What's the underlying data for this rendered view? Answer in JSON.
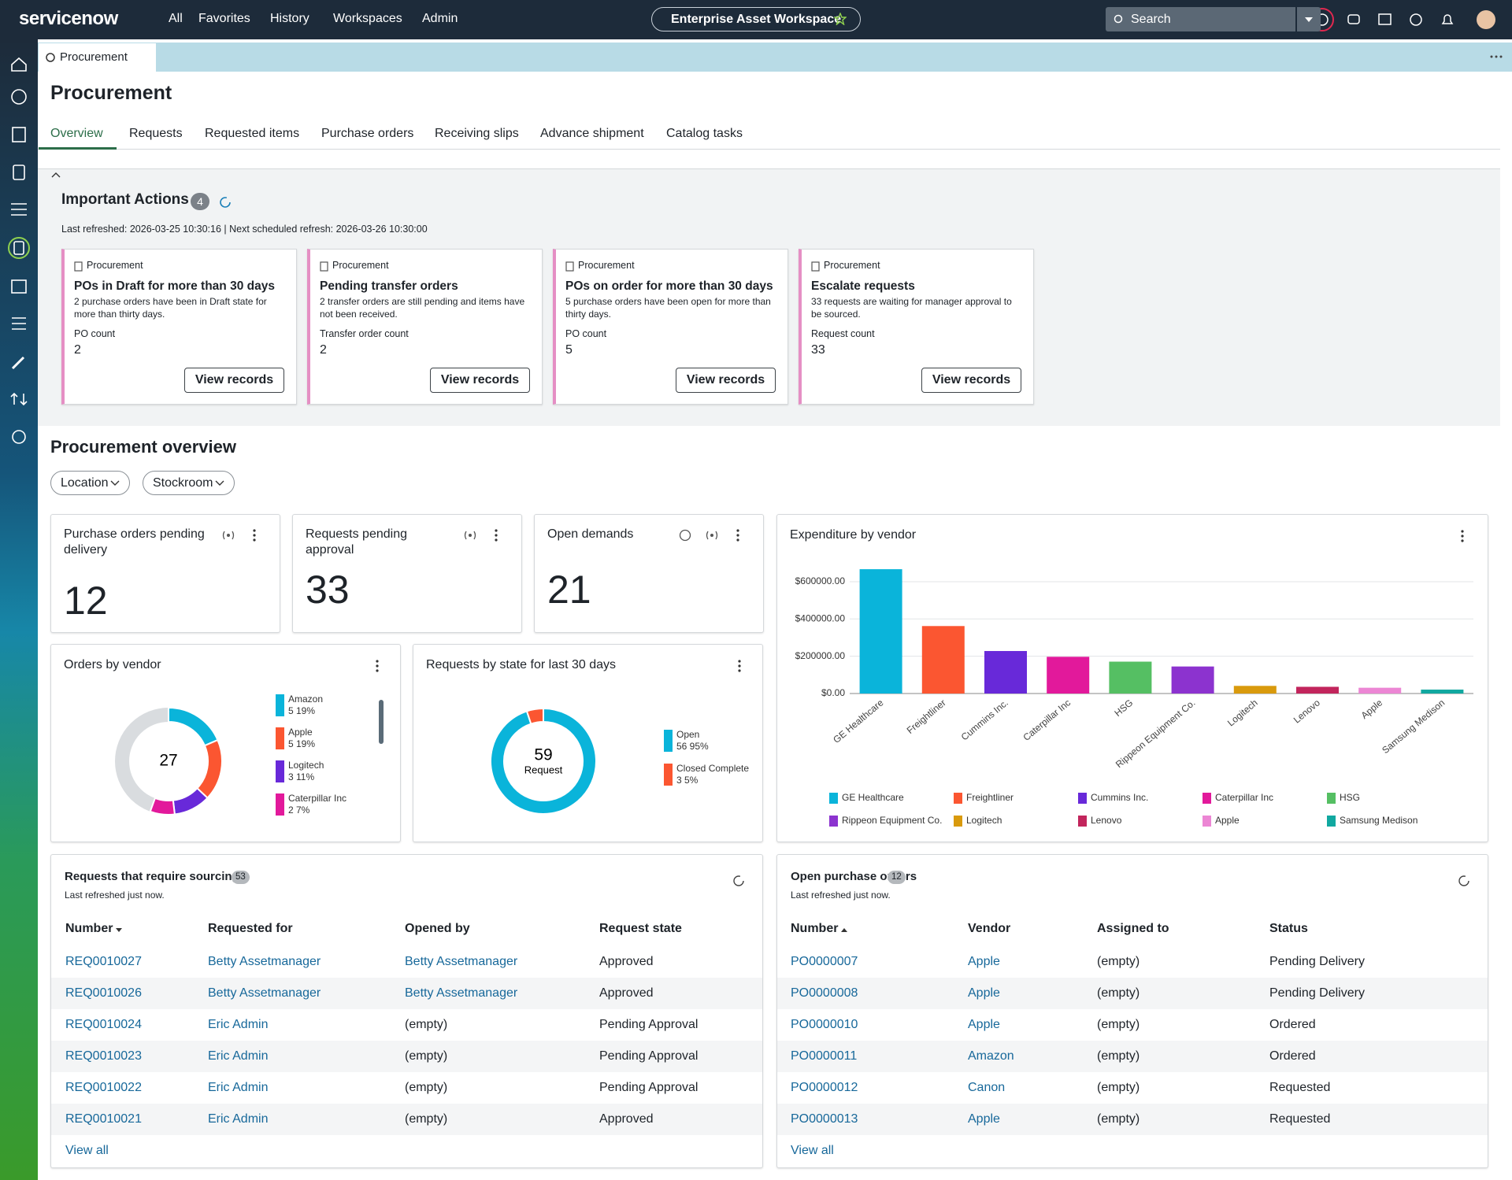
{
  "nav": {
    "brand": "servicenow",
    "menu": [
      "All",
      "Favorites",
      "History",
      "Workspaces",
      "Admin"
    ],
    "workspace": "Enterprise Asset Workspace",
    "search": "Search"
  },
  "tab": "Procurement",
  "page_title": "Procurement",
  "tabs": [
    "Overview",
    "Requests",
    "Requested items",
    "Purchase orders",
    "Receiving slips",
    "Advance shipment",
    "Catalog tasks"
  ],
  "actions": {
    "title": "Important Actions",
    "count": 4,
    "refresh": "Last refreshed: 2026-03-25 10:30:16 | Next scheduled refresh: 2026-03-26 10:30:00",
    "cards": [
      {
        "source": "Procurement",
        "title": "POs in Draft for more than 30 days",
        "description": "2 purchase orders have been in Draft state for more than thirty days.",
        "metric_label": "PO count",
        "metric": 2,
        "button": "View records"
      },
      {
        "source": "Procurement",
        "title": "Pending transfer orders",
        "description": "2 transfer orders are still pending and items have not been received.",
        "metric_label": "Transfer order count",
        "metric": 2,
        "button": "View records"
      },
      {
        "source": "Procurement",
        "title": "POs on order for more than 30 days",
        "description": "5 purchase orders have been open for more than thirty days.",
        "metric_label": "PO count",
        "metric": 5,
        "button": "View records"
      },
      {
        "source": "Procurement",
        "title": "Escalate requests",
        "description": "33 requests are waiting for manager approval to be sourced.",
        "metric_label": "Request count",
        "metric": 33,
        "button": "View records"
      }
    ]
  },
  "overview": {
    "title": "Procurement overview",
    "filters": [
      "Location",
      "Stockroom"
    ]
  },
  "kpis": [
    {
      "label": "Purchase orders pending delivery",
      "value": 12
    },
    {
      "label": "Requests pending approval",
      "value": 33
    },
    {
      "label": "Open demands",
      "value": 21
    }
  ],
  "chart_data": [
    {
      "type": "donut",
      "title": "Orders by vendor",
      "total": 27,
      "categories": [
        "Amazon",
        "Apple",
        "Logitech",
        "Caterpillar Inc"
      ],
      "values": [
        5,
        5,
        3,
        2
      ],
      "value_labels": [
        "5 19%",
        "5 19%",
        "3 11%",
        "2 7%"
      ],
      "colors": [
        "#0ab4da",
        "#fb5631",
        "#6829d9",
        "#e2199b"
      ]
    },
    {
      "type": "donut",
      "title": "Requests by state for last 30 days",
      "total": 59,
      "center_label": "Request",
      "categories": [
        "Open",
        "Closed Complete"
      ],
      "values": [
        56,
        3
      ],
      "value_labels": [
        "56 95%",
        "3 5%"
      ],
      "colors": [
        "#0ab4da",
        "#fb5631"
      ]
    },
    {
      "type": "bar",
      "title": "Expenditure by vendor",
      "categories": [
        "GE Healthcare",
        "Freightliner",
        "Cummins Inc.",
        "Caterpillar Inc",
        "HSG",
        "Rippeon Equipment Co.",
        "Logitech",
        "Lenovo",
        "Apple",
        "Samsung Medison"
      ],
      "values": [
        667000,
        362000,
        228000,
        197000,
        171000,
        145000,
        41000,
        36000,
        31000,
        21000
      ],
      "colors": [
        "#0ab4da",
        "#fb5631",
        "#6829d9",
        "#e2199b",
        "#55bf63",
        "#8c33cf",
        "#d99a0d",
        "#c2255c",
        "#ec86d4",
        "#11a8a0"
      ],
      "ylim": [
        0,
        680000
      ],
      "yticks": [
        {
          "value": 0,
          "label": "$0.00"
        },
        {
          "value": 200000,
          "label": "$200000.00"
        },
        {
          "value": 400000,
          "label": "$400000.00"
        },
        {
          "value": 600000,
          "label": "$600000.00"
        }
      ],
      "grid": true
    }
  ],
  "tables": [
    {
      "title": "Requests that require sourcing",
      "count": 53,
      "refreshed": "Last refreshed just now.",
      "columns": [
        "Number",
        "Requested for",
        "Opened by",
        "Request state"
      ],
      "rows": [
        [
          "REQ0010027",
          "Betty Assetmanager",
          "Betty Assetmanager",
          "Approved"
        ],
        [
          "REQ0010026",
          "Betty Assetmanager",
          "Betty Assetmanager",
          "Approved"
        ],
        [
          "REQ0010024",
          "Eric Admin",
          "(empty)",
          "Pending Approval"
        ],
        [
          "REQ0010023",
          "Eric Admin",
          "(empty)",
          "Pending Approval"
        ],
        [
          "REQ0010022",
          "Eric Admin",
          "(empty)",
          "Pending Approval"
        ],
        [
          "REQ0010021",
          "Eric Admin",
          "(empty)",
          "Approved"
        ]
      ],
      "view_all": "View all"
    },
    {
      "title": "Open purchase orders",
      "count": 12,
      "refreshed": "Last refreshed just now.",
      "columns": [
        "Number",
        "Vendor",
        "Assigned to",
        "Status"
      ],
      "rows": [
        [
          "PO0000007",
          "Apple",
          "(empty)",
          "Pending Delivery"
        ],
        [
          "PO0000008",
          "Apple",
          "(empty)",
          "Pending Delivery"
        ],
        [
          "PO0000010",
          "Apple",
          "(empty)",
          "Ordered"
        ],
        [
          "PO0000011",
          "Amazon",
          "(empty)",
          "Ordered"
        ],
        [
          "PO0000012",
          "Canon",
          "(empty)",
          "Requested"
        ],
        [
          "PO0000013",
          "Apple",
          "(empty)",
          "Requested"
        ]
      ],
      "view_all": "View all"
    }
  ]
}
